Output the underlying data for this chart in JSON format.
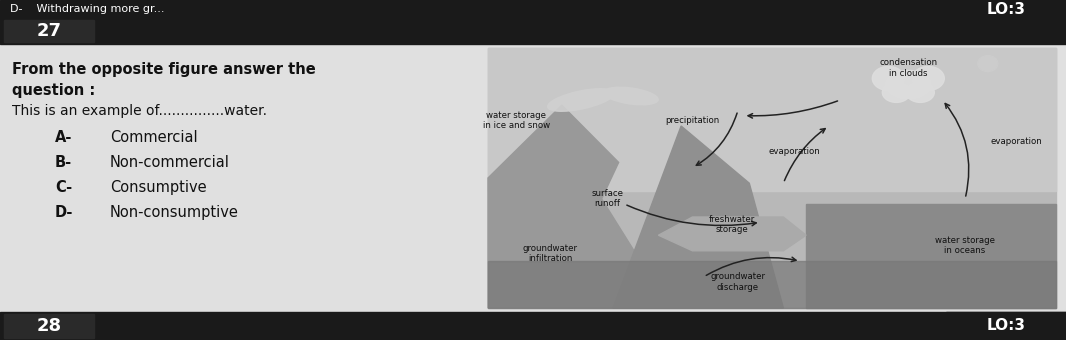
{
  "bg_color": "#d0d0d0",
  "top_strip_color": "#1a1a1a",
  "top_strip_text": "D-    Withdrawing more gr...",
  "top_strip_text_color": "#ffffff",
  "lo3_box_color": "#1a1a1a",
  "lo3_text": "LO:3",
  "lo3_text_color": "#ffffff",
  "q_number_box_color": "#1a1a1a",
  "q_number_text": "27",
  "q_number_text_color": "#ffffff",
  "question_text_line1": "From the opposite figure answer the",
  "question_text_line2": "question :",
  "question_text_line3": "This is an example of...............water.",
  "options": [
    {
      "label": "A-",
      "text": "Commercial"
    },
    {
      "label": "B-",
      "text": "Non-commercial"
    },
    {
      "label": "C-",
      "text": "Consumptive"
    },
    {
      "label": "D-",
      "text": "Non-consumptive"
    }
  ],
  "q28_number_text": "28",
  "bottom_strip_color": "#1a1a1a",
  "bottom_lo3_text": "LO:3",
  "main_text_color": "#111111",
  "content_bg": "#e0e0e0"
}
